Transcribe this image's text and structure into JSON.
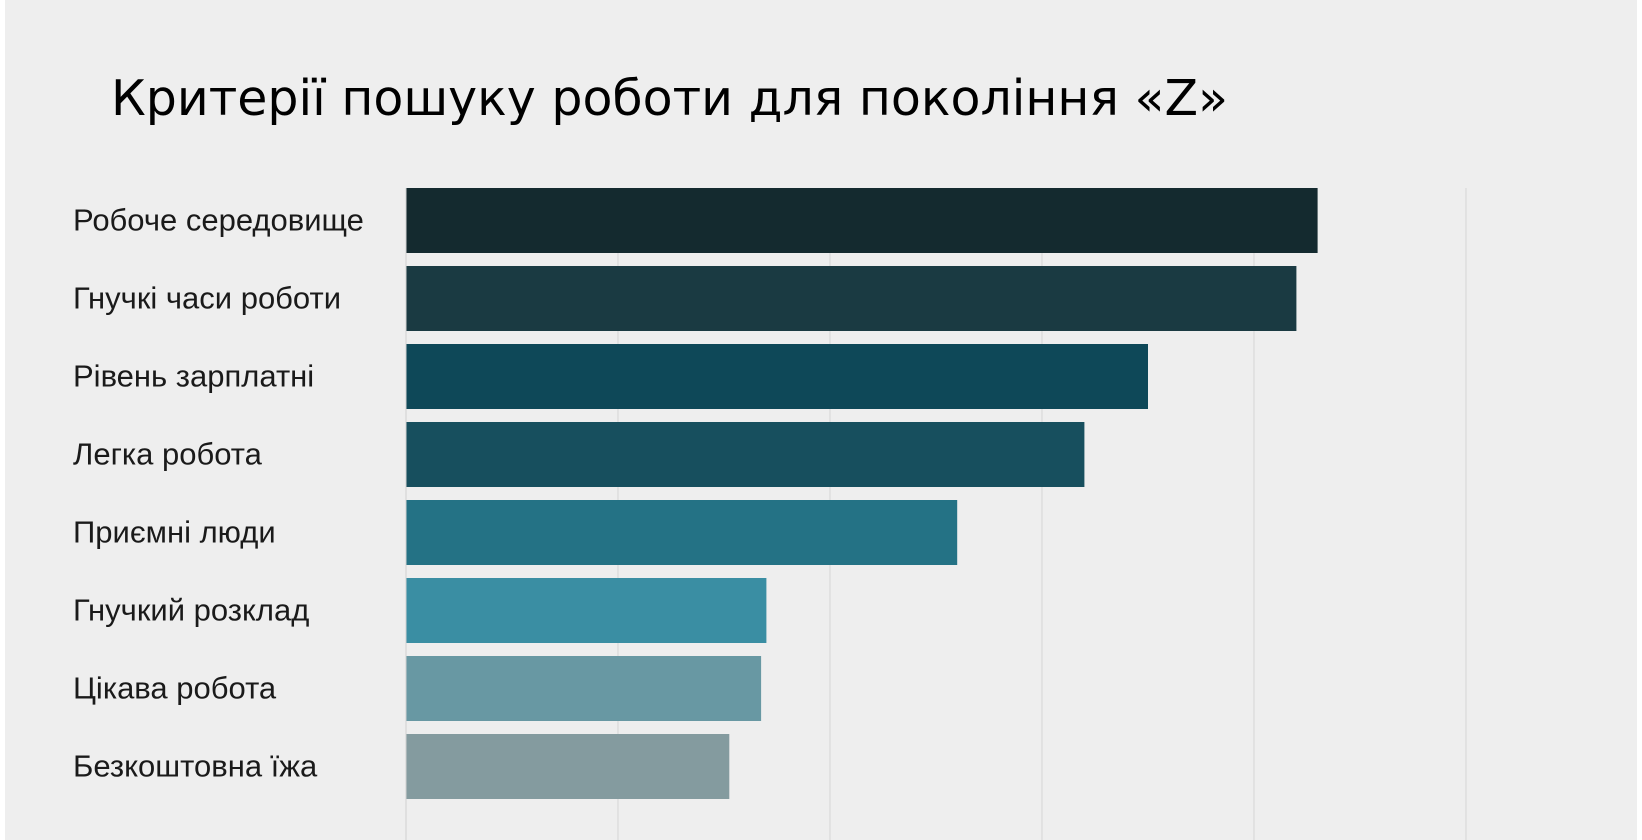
{
  "chart_data": {
    "type": "bar",
    "orientation": "horizontal",
    "title": "Критерії пошуку роботи для покоління «Z»",
    "xlabel": "",
    "ylabel": "",
    "grid": true,
    "xlim": [
      0,
      100
    ],
    "categories": [
      "Робоче середовище",
      "Гнучкі часи роботи",
      "Рівень зарплатні",
      "Легка робота",
      "Приємні люди",
      "Гнучкий розклад",
      "Цікава робота",
      "Безкоштовна їжа"
    ],
    "values": [
      86,
      84,
      70,
      64,
      52,
      34,
      33.5,
      30.5
    ],
    "colors": [
      "#142a2f",
      "#1a3a42",
      "#0e4858",
      "#174f5e",
      "#247285",
      "#3a8ea3",
      "#6898a3",
      "#849b9f"
    ]
  }
}
